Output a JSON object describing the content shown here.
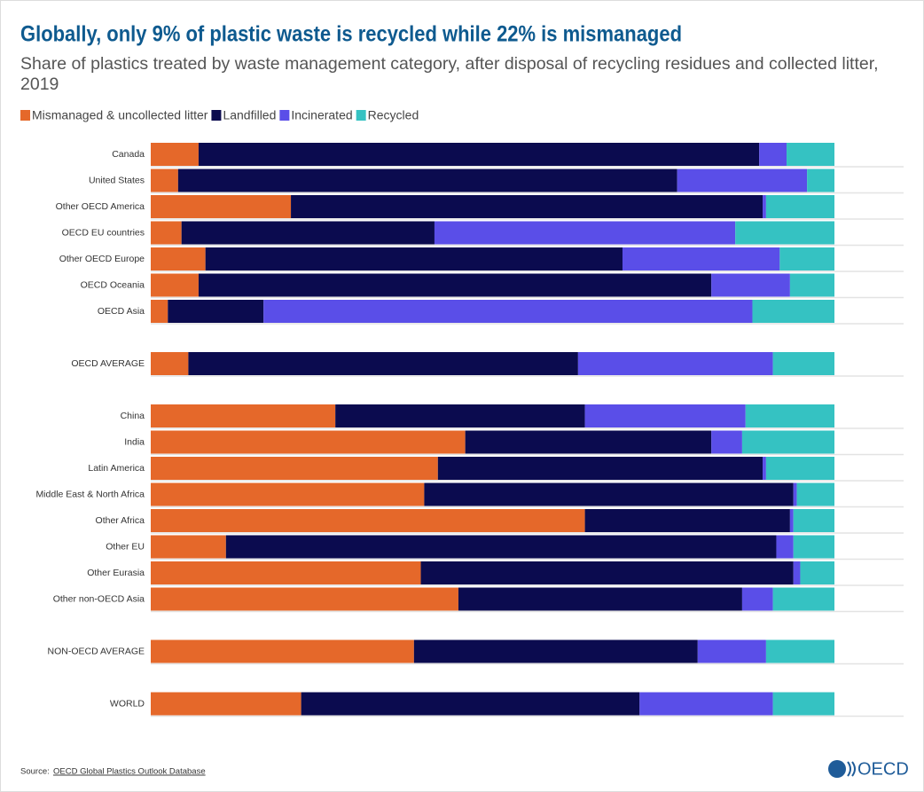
{
  "chart_data": {
    "type": "stacked-barh",
    "title": "Globally, only 9% of plastic waste is recycled while 22% is mismanaged",
    "subtitle": "Share of plastics treated by waste management category, after disposal of recycling residues and collected litter, 2019",
    "categories": [
      "Canada",
      "United States",
      "Other OECD America",
      "OECD EU countries",
      "Other OECD Europe",
      "OECD Oceania",
      "OECD Asia",
      null,
      "OECD AVERAGE",
      null,
      "China",
      "India",
      "Latin America",
      "Middle East & North Africa",
      "Other Africa",
      "Other EU",
      "Other Eurasia",
      "Other non-OECD Asia",
      null,
      "NON-OECD AVERAGE",
      null,
      "WORLD"
    ],
    "series": [
      {
        "name": "Mismanaged & uncollected litter",
        "color": "#e5682a",
        "values": [
          7,
          4,
          20.5,
          4.5,
          8,
          7,
          2.5,
          null,
          5.5,
          null,
          27,
          46,
          42,
          40,
          63.5,
          11,
          39.5,
          45,
          null,
          38.5,
          null,
          22
        ]
      },
      {
        "name": "Landfilled",
        "color": "#0b0b4f",
        "values": [
          82,
          73,
          69,
          37,
          61,
          75,
          14,
          null,
          57,
          null,
          36.5,
          36,
          47.5,
          54,
          30,
          80.5,
          54.5,
          41.5,
          null,
          41.5,
          null,
          49.5
        ]
      },
      {
        "name": "Incinerated",
        "color": "#5a4ee8",
        "values": [
          4,
          19,
          0.5,
          44,
          23,
          11.5,
          71.5,
          null,
          28.5,
          null,
          23.5,
          4.5,
          0.5,
          0.5,
          0.5,
          2.5,
          1,
          4.5,
          null,
          10,
          null,
          19.5
        ]
      },
      {
        "name": "Recycled",
        "color": "#35c2c2",
        "values": [
          7,
          4,
          10,
          14.5,
          8,
          6.5,
          12,
          null,
          9,
          null,
          13,
          13.5,
          10,
          5.5,
          6,
          6,
          5,
          9,
          null,
          10,
          null,
          9
        ]
      }
    ],
    "xlim": [
      0,
      100
    ],
    "source_label": "Source:",
    "source": "OECD Global Plastics Outlook Database",
    "logo": "OECD"
  }
}
